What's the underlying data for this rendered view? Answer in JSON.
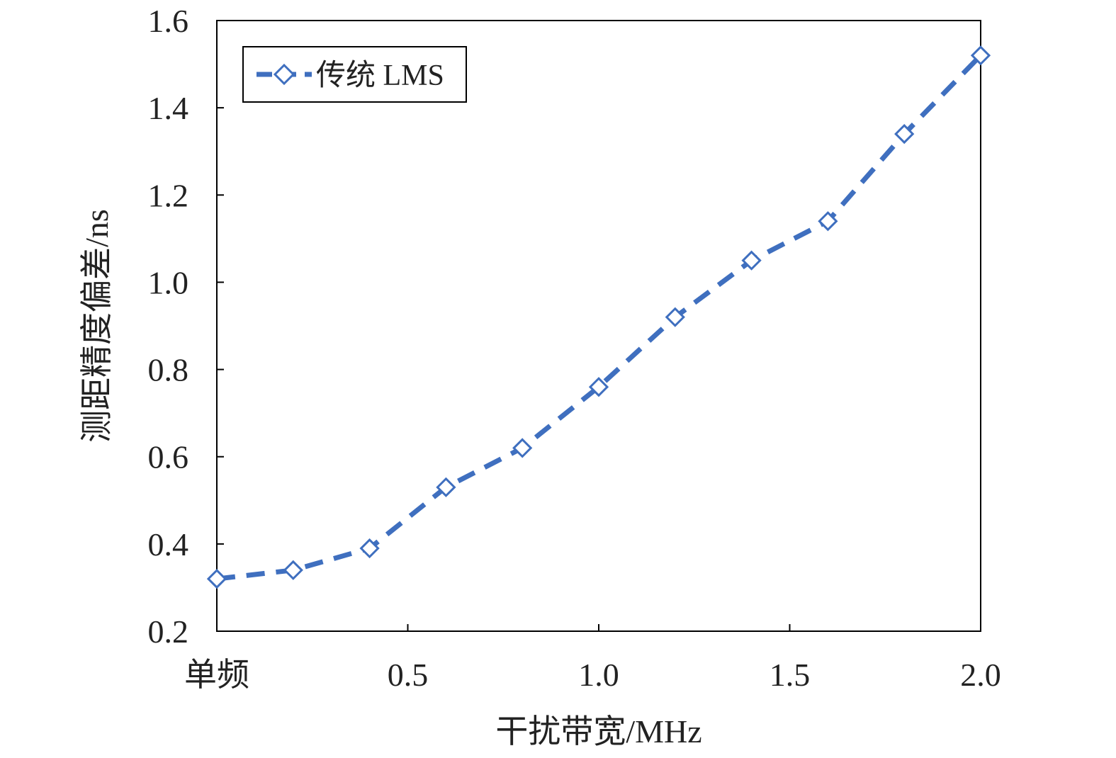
{
  "chart_data": {
    "type": "line",
    "xlabel": "干扰带宽/MHz",
    "ylabel": "测距精度偏差/ns",
    "xlim": [
      0,
      2.0
    ],
    "ylim": [
      0.2,
      1.6
    ],
    "x_ticks": [
      {
        "value": 0,
        "label": "单频"
      },
      {
        "value": 0.5,
        "label": "0.5"
      },
      {
        "value": 1.0,
        "label": "1.0"
      },
      {
        "value": 1.5,
        "label": "1.5"
      },
      {
        "value": 2.0,
        "label": "2.0"
      }
    ],
    "y_ticks": [
      {
        "value": 0.2,
        "label": "0.2"
      },
      {
        "value": 0.4,
        "label": "0.4"
      },
      {
        "value": 0.6,
        "label": "0.6"
      },
      {
        "value": 0.8,
        "label": "0.8"
      },
      {
        "value": 1.0,
        "label": "1.0"
      },
      {
        "value": 1.2,
        "label": "1.2"
      },
      {
        "value": 1.4,
        "label": "1.4"
      },
      {
        "value": 1.6,
        "label": "1.6"
      }
    ],
    "legend_position": "top-left",
    "grid": false,
    "series": [
      {
        "name": "传统 LMS",
        "color": "#3f6fbf",
        "line_style": "dashed",
        "marker": "diamond-open",
        "x": [
          0,
          0.2,
          0.4,
          0.6,
          0.8,
          1.0,
          1.2,
          1.4,
          1.6,
          1.8,
          2.0
        ],
        "y": [
          0.32,
          0.34,
          0.39,
          0.53,
          0.62,
          0.76,
          0.92,
          1.05,
          1.14,
          1.34,
          1.52
        ]
      }
    ]
  }
}
